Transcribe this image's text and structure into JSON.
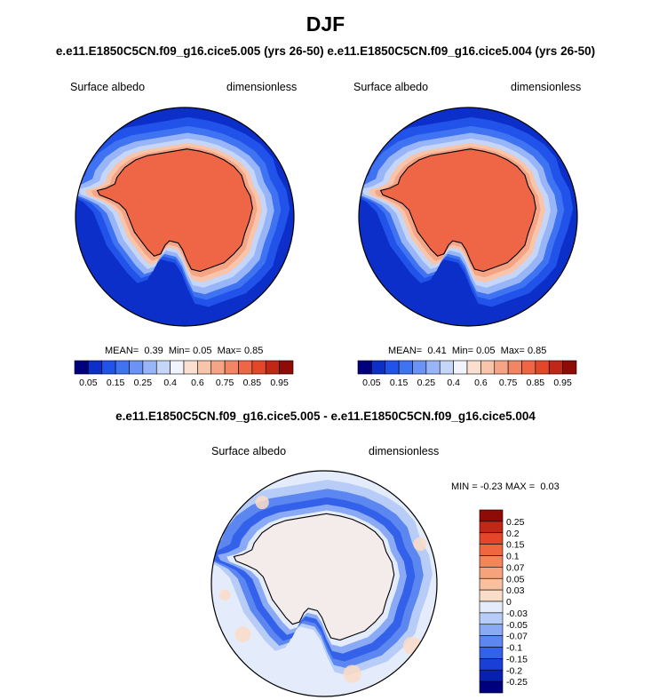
{
  "page": {
    "title": "DJF",
    "subtitle_left": "e.e11.E1850C5CN.f09_g16.cice5.005 (yrs 26-50)",
    "subtitle_right": "e.e11.E1850C5CN.f09_g16.cice5.004 (yrs 26-50)",
    "diff_title": "e.e11.E1850C5CN.f09_g16.cice5.005 - e.e11.E1850C5CN.f09_g16.cice5.004"
  },
  "chart_data": [
    {
      "type": "heatmap",
      "projection": "south-polar-stereographic",
      "variable": "Surface albedo",
      "units": "dimensionless",
      "stats": {
        "mean_label": "MEAN=",
        "mean": "0.39",
        "min_label": "Min=",
        "min": "0.05",
        "max_label": "Max=",
        "max": "0.85"
      },
      "colorbar": {
        "orientation": "horizontal",
        "levels": [
          "0.05",
          "0.15",
          "0.25",
          "0.4",
          "0.6",
          "0.75",
          "0.85",
          "0.95"
        ],
        "colors": [
          "#00007f",
          "#0b2fc8",
          "#2152ea",
          "#3f73f2",
          "#6a93f5",
          "#98b5f7",
          "#c6d6f9",
          "#f1f4fc",
          "#fbe0d2",
          "#f8c4aa",
          "#f5a585",
          "#f18564",
          "#ee6645",
          "#e4462a",
          "#c02716",
          "#8e0b06"
        ]
      }
    },
    {
      "type": "heatmap",
      "projection": "south-polar-stereographic",
      "variable": "Surface albedo",
      "units": "dimensionless",
      "stats": {
        "mean_label": "MEAN=",
        "mean": "0.41",
        "min_label": "Min=",
        "min": "0.05",
        "max_label": "Max=",
        "max": "0.85"
      },
      "colorbar": {
        "orientation": "horizontal",
        "levels": [
          "0.05",
          "0.15",
          "0.25",
          "0.4",
          "0.6",
          "0.75",
          "0.85",
          "0.95"
        ],
        "colors": [
          "#00007f",
          "#0b2fc8",
          "#2152ea",
          "#3f73f2",
          "#6a93f5",
          "#98b5f7",
          "#c6d6f9",
          "#f1f4fc",
          "#fbe0d2",
          "#f8c4aa",
          "#f5a585",
          "#f18564",
          "#ee6645",
          "#e4462a",
          "#c02716",
          "#8e0b06"
        ]
      }
    },
    {
      "type": "heatmap",
      "projection": "south-polar-stereographic",
      "variable": "Surface albedo",
      "units": "dimensionless",
      "stats": {
        "min_label": "MIN =",
        "min": "-0.23",
        "max_label": "MAX =",
        "max": "0.03"
      },
      "colorbar": {
        "orientation": "vertical",
        "levels": [
          "0.25",
          "0.2",
          "0.15",
          "0.1",
          "0.07",
          "0.05",
          "0.03",
          "0",
          "-0.03",
          "-0.05",
          "-0.07",
          "-0.1",
          "-0.15",
          "-0.2",
          "-0.25"
        ],
        "colors": [
          "#8e0b06",
          "#c02716",
          "#e4462a",
          "#f0663f",
          "#f3845c",
          "#f6a27d",
          "#f9c0a0",
          "#fbdcc6",
          "#e4ecfb",
          "#b7cdf8",
          "#8aaaf5",
          "#5c86f0",
          "#3361e9",
          "#1a3fd6",
          "#0820b0",
          "#00007f"
        ]
      }
    }
  ]
}
